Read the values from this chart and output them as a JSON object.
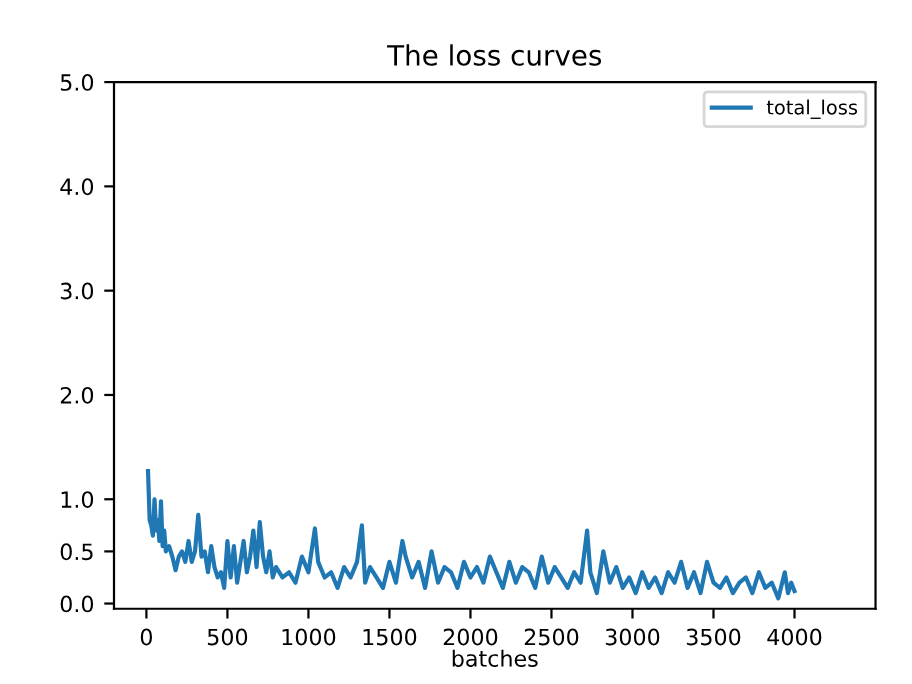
{
  "chart_data": {
    "type": "line",
    "title": "The loss curves",
    "xlabel": "batches",
    "xlim": [
      -200,
      4500
    ],
    "ylim": [
      -0.05,
      5.0
    ],
    "xticks": [
      0,
      500,
      1000,
      1500,
      2000,
      2500,
      3000,
      3500,
      4000
    ],
    "yticks": [
      {
        "value": 0,
        "label": "0.0"
      },
      0.5,
      {
        "value": 1,
        "label": "1.0"
      },
      {
        "value": 2,
        "label": "2.0"
      },
      {
        "value": 3,
        "label": "3.0"
      },
      {
        "value": 4,
        "label": "4.0"
      },
      {
        "value": 5,
        "label": "5.0"
      }
    ],
    "legend": "top right",
    "grid": false,
    "x": [
      10,
      20,
      30,
      40,
      50,
      60,
      70,
      80,
      90,
      100,
      110,
      120,
      140,
      160,
      180,
      200,
      220,
      240,
      260,
      280,
      300,
      320,
      340,
      360,
      380,
      400,
      420,
      440,
      460,
      480,
      500,
      520,
      540,
      560,
      580,
      600,
      620,
      640,
      660,
      680,
      700,
      720,
      740,
      760,
      780,
      800,
      840,
      880,
      920,
      960,
      1000,
      1040,
      1060,
      1100,
      1140,
      1180,
      1220,
      1260,
      1300,
      1330,
      1350,
      1380,
      1420,
      1460,
      1500,
      1540,
      1580,
      1600,
      1640,
      1680,
      1720,
      1760,
      1800,
      1840,
      1880,
      1920,
      1960,
      2000,
      2040,
      2080,
      2120,
      2160,
      2200,
      2240,
      2280,
      2320,
      2360,
      2400,
      2440,
      2480,
      2520,
      2560,
      2600,
      2640,
      2680,
      2720,
      2740,
      2780,
      2820,
      2860,
      2900,
      2940,
      2980,
      3020,
      3060,
      3100,
      3140,
      3180,
      3220,
      3260,
      3300,
      3340,
      3380,
      3420,
      3460,
      3500,
      3540,
      3580,
      3620,
      3660,
      3700,
      3740,
      3780,
      3820,
      3860,
      3900,
      3940,
      3960,
      3980,
      4000
    ],
    "series": [
      {
        "name": "total_loss",
        "color": "#1f77b4",
        "values": [
          1.27,
          0.8,
          0.75,
          0.65,
          1.0,
          0.7,
          0.8,
          0.6,
          0.98,
          0.55,
          0.7,
          0.5,
          0.55,
          0.45,
          0.32,
          0.45,
          0.5,
          0.4,
          0.6,
          0.4,
          0.5,
          0.85,
          0.45,
          0.5,
          0.3,
          0.55,
          0.35,
          0.25,
          0.3,
          0.15,
          0.6,
          0.25,
          0.55,
          0.2,
          0.4,
          0.6,
          0.3,
          0.45,
          0.7,
          0.35,
          0.78,
          0.45,
          0.3,
          0.5,
          0.25,
          0.35,
          0.25,
          0.3,
          0.2,
          0.45,
          0.3,
          0.72,
          0.4,
          0.25,
          0.3,
          0.15,
          0.35,
          0.25,
          0.4,
          0.75,
          0.2,
          0.35,
          0.25,
          0.15,
          0.4,
          0.2,
          0.6,
          0.45,
          0.25,
          0.4,
          0.15,
          0.5,
          0.2,
          0.35,
          0.3,
          0.15,
          0.4,
          0.25,
          0.35,
          0.2,
          0.45,
          0.3,
          0.15,
          0.4,
          0.2,
          0.35,
          0.3,
          0.15,
          0.45,
          0.2,
          0.35,
          0.25,
          0.15,
          0.3,
          0.2,
          0.7,
          0.3,
          0.1,
          0.5,
          0.2,
          0.35,
          0.15,
          0.25,
          0.1,
          0.3,
          0.15,
          0.25,
          0.1,
          0.3,
          0.2,
          0.4,
          0.15,
          0.3,
          0.1,
          0.4,
          0.2,
          0.15,
          0.25,
          0.1,
          0.2,
          0.25,
          0.1,
          0.3,
          0.15,
          0.2,
          0.05,
          0.3,
          0.1,
          0.2,
          0.12
        ]
      }
    ]
  }
}
